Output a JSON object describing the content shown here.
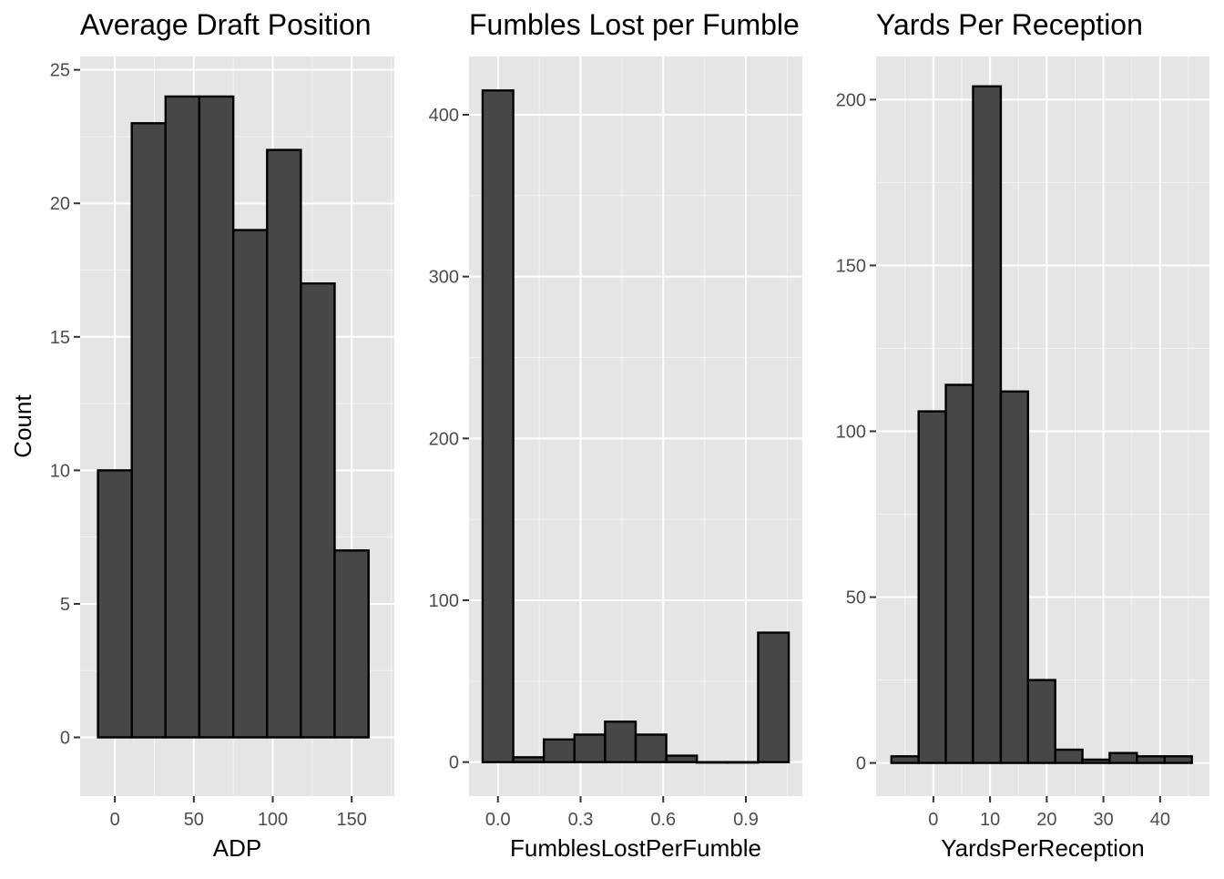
{
  "figure": {
    "shared_ylabel": "Count"
  },
  "chart_data": [
    {
      "type": "bar",
      "title": "Average Draft Position",
      "xlabel": "ADP",
      "ylabel": "Count",
      "xlim": [
        -22,
        177
      ],
      "ylim": [
        -2.2,
        25.5
      ],
      "xticks": [
        0,
        50,
        100,
        150
      ],
      "xtick_labels": [
        "0",
        "50",
        "100",
        "150"
      ],
      "yticks": [
        0,
        5,
        10,
        15,
        20,
        25
      ],
      "ytick_labels": [
        "0",
        "5",
        "10",
        "15",
        "20",
        "25"
      ],
      "bins": [
        {
          "x0": -10.7,
          "x1": 10.7,
          "count": 10
        },
        {
          "x0": 10.7,
          "x1": 32.1,
          "count": 23
        },
        {
          "x0": 32.1,
          "x1": 53.5,
          "count": 24
        },
        {
          "x0": 53.5,
          "x1": 75.0,
          "count": 24
        },
        {
          "x0": 75.0,
          "x1": 96.4,
          "count": 19
        },
        {
          "x0": 96.4,
          "x1": 117.8,
          "count": 22
        },
        {
          "x0": 117.8,
          "x1": 139.2,
          "count": 17
        },
        {
          "x0": 139.2,
          "x1": 160.7,
          "count": 7
        }
      ],
      "fill_color": "#474747",
      "edge_color": "#000000",
      "panel_color": "#e5e5e5",
      "grid": true,
      "legend": "none"
    },
    {
      "type": "bar",
      "title": "Fumbles Lost per Fumble",
      "xlabel": "FumblesLostPerFumble",
      "ylabel": "Count",
      "xlim": [
        -0.105,
        1.105
      ],
      "ylim": [
        -21,
        436
      ],
      "xticks": [
        0.0,
        0.3,
        0.6,
        0.9
      ],
      "xtick_labels": [
        "0.0",
        "0.3",
        "0.6",
        "0.9"
      ],
      "yticks": [
        0,
        100,
        200,
        300,
        400
      ],
      "ytick_labels": [
        "0",
        "100",
        "200",
        "300",
        "400"
      ],
      "bins": [
        {
          "x0": -0.0556,
          "x1": 0.0556,
          "count": 415
        },
        {
          "x0": 0.0556,
          "x1": 0.1667,
          "count": 3
        },
        {
          "x0": 0.1667,
          "x1": 0.2778,
          "count": 14
        },
        {
          "x0": 0.2778,
          "x1": 0.3889,
          "count": 17
        },
        {
          "x0": 0.3889,
          "x1": 0.5,
          "count": 25
        },
        {
          "x0": 0.5,
          "x1": 0.6111,
          "count": 17
        },
        {
          "x0": 0.6111,
          "x1": 0.7222,
          "count": 4
        },
        {
          "x0": 0.7222,
          "x1": 0.8333,
          "count": 0
        },
        {
          "x0": 0.8333,
          "x1": 0.9444,
          "count": 0
        },
        {
          "x0": 0.9444,
          "x1": 1.0556,
          "count": 80
        }
      ],
      "fill_color": "#474747",
      "edge_color": "#000000",
      "panel_color": "#e5e5e5",
      "grid": true,
      "legend": "none"
    },
    {
      "type": "bar",
      "title": "Yards Per Reception",
      "xlabel": "YardsPerReception",
      "ylabel": "Count",
      "xlim": [
        -10.1,
        48.7
      ],
      "ylim": [
        -10,
        213
      ],
      "xticks": [
        0,
        10,
        20,
        30,
        40
      ],
      "xtick_labels": [
        "0",
        "10",
        "20",
        "30",
        "40"
      ],
      "yticks": [
        0,
        50,
        100,
        150,
        200
      ],
      "ytick_labels": [
        "0",
        "50",
        "100",
        "150",
        "200"
      ],
      "bins": [
        {
          "x0": -7.4,
          "x1": -2.6,
          "count": 2
        },
        {
          "x0": -2.6,
          "x1": 2.2,
          "count": 106
        },
        {
          "x0": 2.2,
          "x1": 7.0,
          "count": 114
        },
        {
          "x0": 7.0,
          "x1": 11.9,
          "count": 204
        },
        {
          "x0": 11.9,
          "x1": 16.7,
          "count": 112
        },
        {
          "x0": 16.7,
          "x1": 21.5,
          "count": 25
        },
        {
          "x0": 21.5,
          "x1": 26.3,
          "count": 4
        },
        {
          "x0": 26.3,
          "x1": 31.1,
          "count": 1
        },
        {
          "x0": 31.1,
          "x1": 35.9,
          "count": 3
        },
        {
          "x0": 35.9,
          "x1": 40.8,
          "count": 2
        },
        {
          "x0": 40.8,
          "x1": 45.6,
          "count": 2
        }
      ],
      "fill_color": "#474747",
      "edge_color": "#000000",
      "panel_color": "#e5e5e5",
      "grid": true,
      "legend": "none"
    }
  ]
}
